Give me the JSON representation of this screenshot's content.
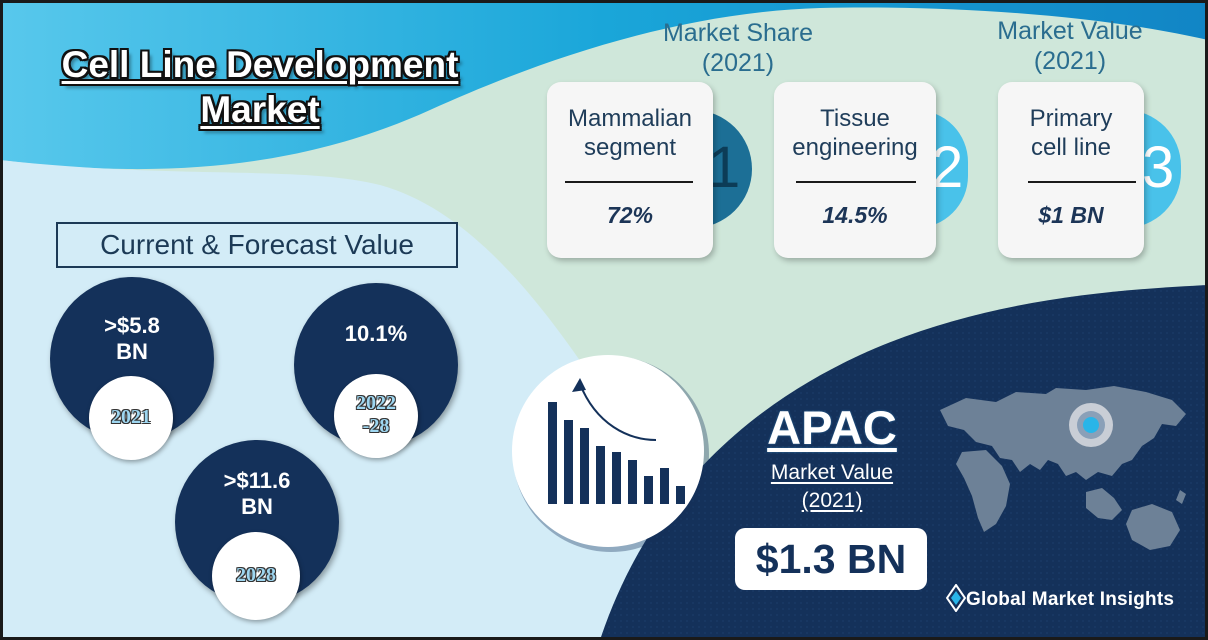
{
  "title": {
    "line1": "Cell Line Development",
    "line2": "Market"
  },
  "market_share": {
    "heading_line1": "Market Share",
    "heading_line2": "(2021)",
    "cards": [
      {
        "title_line1": "Mammalian",
        "title_line2": "segment",
        "value": "72%",
        "number": "1"
      },
      {
        "title_line1": "Tissue",
        "title_line2": "engineering",
        "value": "14.5%",
        "number": "2"
      }
    ]
  },
  "market_value": {
    "heading_line1": "Market Value",
    "heading_line2": "(2021)",
    "card": {
      "title_line1": "Primary",
      "title_line2": "cell line",
      "value": "$1 BN",
      "number": "3"
    }
  },
  "forecast": {
    "heading": "Current & Forecast Value",
    "items": [
      {
        "value_line1": ">$5.8",
        "value_line2": "BN",
        "period": "2021"
      },
      {
        "value_line1": "10.1%",
        "period_line1": "2022",
        "period_line2": "-28"
      },
      {
        "value_line1": ">$11.6",
        "value_line2": "BN",
        "period": "2028"
      }
    ]
  },
  "apac": {
    "region": "APAC",
    "label_line1": "Market Value",
    "label_line2": "(2021)",
    "value": "$1.3 BN"
  },
  "brand": {
    "name": "Global Market Insights"
  },
  "icons": [
    "bar-chart-growth-icon",
    "world-map-icon",
    "location-pin-icon",
    "brand-logo-icon"
  ],
  "colors": {
    "navy": "#14315a",
    "light_blue": "#d3ecf7",
    "mint": "#cfe7da",
    "cyan": "#1ba6d8",
    "tab_dark": "#1c6f96",
    "tab_light": "#49c2ea"
  }
}
